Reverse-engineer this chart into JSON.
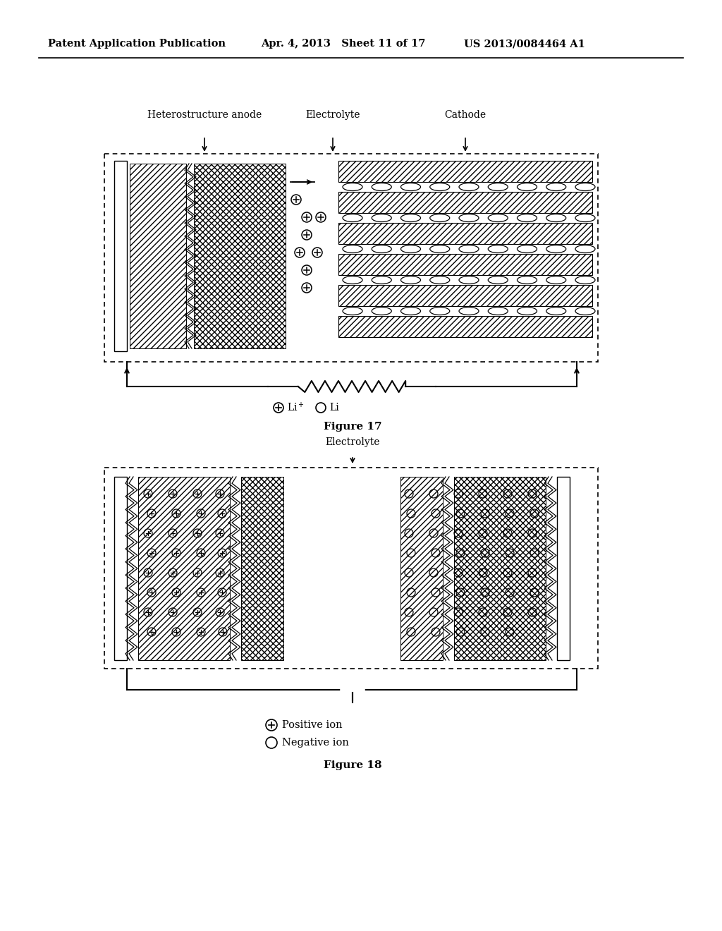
{
  "header_left": "Patent Application Publication",
  "header_mid": "Apr. 4, 2013   Sheet 11 of 17",
  "header_right": "US 2013/0084464 A1",
  "fig17_label": "Figure 17",
  "fig18_label": "Figure 18",
  "fig17_anode_label": "Heterostructure anode",
  "fig17_elec_label": "Electrolyte",
  "fig17_cath_label": "Cathode",
  "fig18_elec_label": "Electrolyte",
  "legend18_pos": "Positive ion",
  "legend18_neg": "Negative ion",
  "bg_color": "#ffffff",
  "line_color": "#000000"
}
